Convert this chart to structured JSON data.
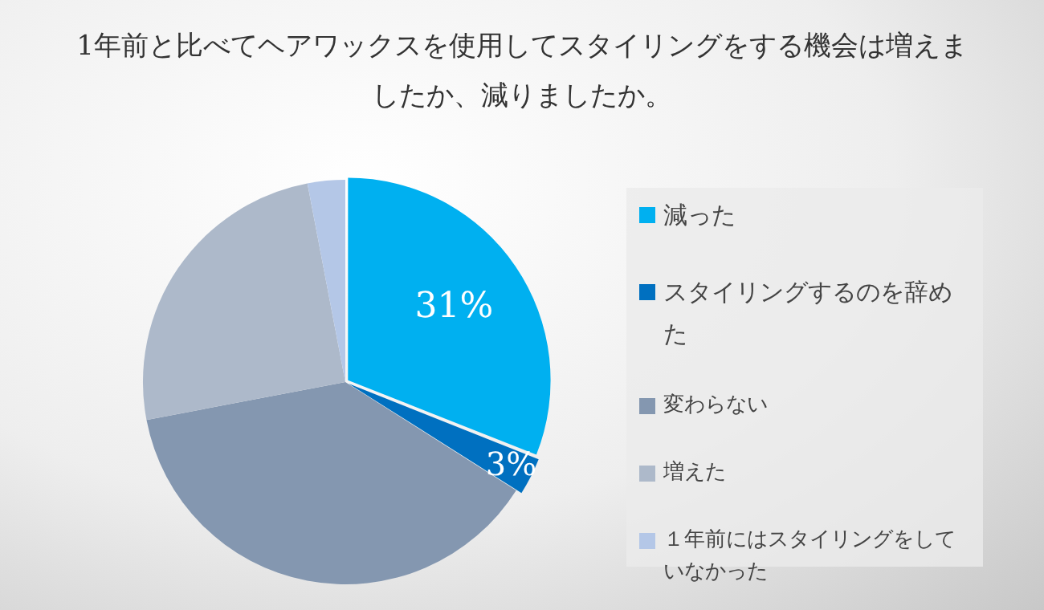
{
  "chart_data": {
    "type": "pie",
    "title": "1年前と比べてヘアワックスを使用してスタイリングをする機会は増えましたか、減りましたか。",
    "categories": [
      "減った",
      "スタイリングするのを辞めた",
      "変わらない",
      "増えた",
      "１年前にはスタイリングをしていなかった"
    ],
    "values": [
      31,
      3,
      38,
      25,
      3
    ],
    "colors": [
      "#00b0f0",
      "#0070c0",
      "#8497b0",
      "#adb9ca",
      "#b4c7e7"
    ],
    "value_labels": [
      "31%",
      "3%",
      null,
      null,
      null
    ],
    "legend": "right"
  }
}
